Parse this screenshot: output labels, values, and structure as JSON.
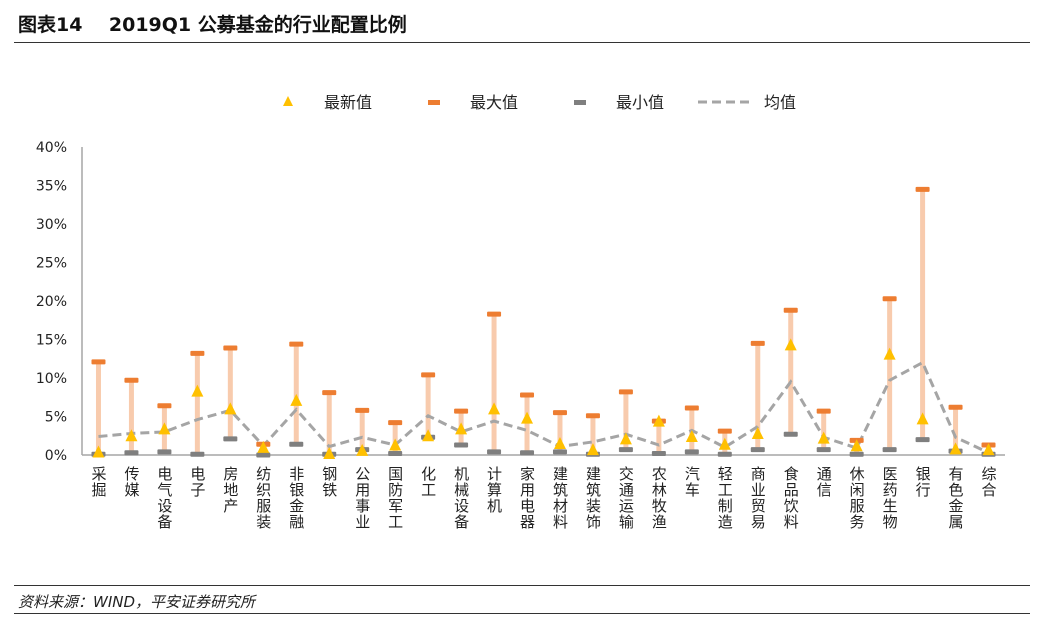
{
  "header": {
    "title": "图表14    2019Q1 公募基金的行业配置比例"
  },
  "footer": {
    "source": "资料来源：WIND，平安证券研究所"
  },
  "colors": {
    "latest": "#FFC000",
    "max": "#ED7D31",
    "min": "#7F7F7F",
    "avg": "#A5A5A5",
    "range": "#F8CBAD"
  },
  "chart_data": {
    "type": "scatter",
    "title": "2019Q1 公募基金的行业配置比例",
    "xlabel": "",
    "ylabel": "",
    "ylim": [
      0,
      40
    ],
    "yticks": [
      "0%",
      "5%",
      "10%",
      "15%",
      "20%",
      "25%",
      "30%",
      "35%",
      "40%"
    ],
    "legend_position": "top",
    "categories": [
      "采掘",
      "传媒",
      "电气设备",
      "电子",
      "房地产",
      "纺织服装",
      "非银金融",
      "钢铁",
      "公用事业",
      "国防军工",
      "化工",
      "机械设备",
      "计算机",
      "家用电器",
      "建筑材料",
      "建筑装饰",
      "交通运输",
      "农林牧渔",
      "汽车",
      "轻工制造",
      "商业贸易",
      "食品饮料",
      "通信",
      "休闲服务",
      "医药生物",
      "银行",
      "有色金属",
      "综合"
    ],
    "series": [
      {
        "name": "最新值",
        "marker": "triangle",
        "values": [
          0.2,
          2.3,
          3.2,
          8.1,
          5.8,
          0.8,
          6.9,
          0.0,
          0.4,
          1.1,
          2.3,
          3.2,
          5.8,
          4.6,
          1.3,
          0.5,
          1.9,
          4.2,
          2.2,
          1.2,
          2.6,
          14.1,
          2.0,
          1.0,
          12.9,
          4.5,
          0.6,
          0.5
        ]
      },
      {
        "name": "最大值",
        "marker": "dash",
        "values": [
          12.1,
          9.7,
          6.4,
          13.2,
          13.9,
          1.4,
          14.4,
          8.1,
          5.8,
          4.2,
          10.4,
          5.7,
          18.3,
          7.8,
          5.5,
          5.1,
          8.2,
          4.4,
          6.1,
          3.1,
          14.5,
          18.8,
          5.7,
          1.9,
          20.3,
          34.5,
          6.2,
          1.3
        ]
      },
      {
        "name": "最小值",
        "marker": "dash",
        "values": [
          0.1,
          0.3,
          0.4,
          0.1,
          2.1,
          0.0,
          1.4,
          0.1,
          0.7,
          0.2,
          2.3,
          1.3,
          0.4,
          0.3,
          0.4,
          0.1,
          0.7,
          0.2,
          0.4,
          0.1,
          0.7,
          2.7,
          0.7,
          0.1,
          0.7,
          2.0,
          0.5,
          0.1
        ]
      },
      {
        "name": "均值",
        "marker": "dashed-line",
        "values": [
          2.4,
          2.8,
          3.0,
          4.6,
          5.8,
          1.2,
          5.9,
          1.1,
          2.3,
          1.3,
          5.1,
          3.0,
          4.4,
          3.2,
          1.1,
          1.7,
          2.7,
          1.3,
          3.2,
          1.0,
          3.7,
          9.5,
          2.3,
          0.9,
          9.7,
          12.0,
          2.3,
          0.3
        ]
      }
    ]
  }
}
